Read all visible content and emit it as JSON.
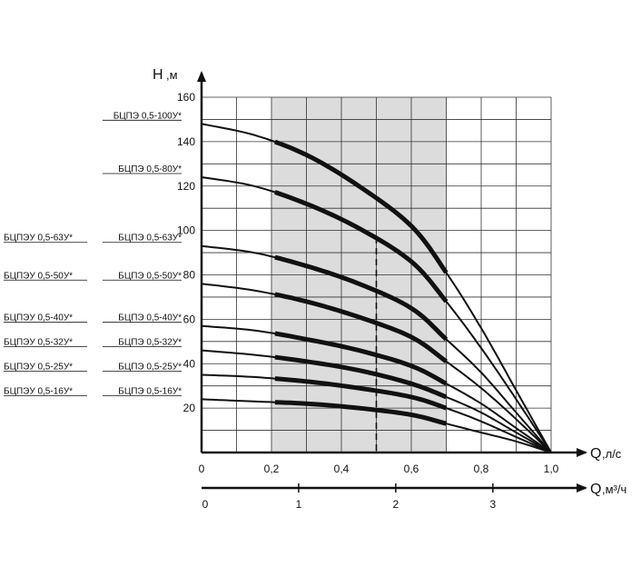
{
  "chart_data": {
    "type": "line",
    "y_axis": {
      "label": "Н",
      "unit": ",м",
      "range": [
        0,
        160
      ],
      "ticks": [
        "20",
        "40",
        "60",
        "80",
        "100",
        "120",
        "140",
        "160"
      ]
    },
    "x_axis": {
      "label": "Q",
      "unit": ",л/с",
      "range": [
        0,
        1.0
      ],
      "ticks": [
        "0",
        "0,2",
        "0,4",
        "0,6",
        "0,8",
        "1,0"
      ]
    },
    "x2_axis": {
      "label": "Q",
      "unit": ",м³/ч",
      "range": [
        0,
        3.6
      ],
      "ticks": [
        "0",
        "1",
        "2",
        "3"
      ]
    },
    "grid": true,
    "working_range": {
      "from": 0.2,
      "to": 0.7,
      "nominal": 0.5
    },
    "series": [
      {
        "name": "БЦПЭ 0,5-100У*",
        "left_name": "",
        "values": [
          148,
          143,
          134,
          120,
          102,
          81,
          56,
          28,
          0
        ]
      },
      {
        "name": "БЦПЭ 0,5-80У*",
        "left_name": "",
        "values": [
          124,
          120,
          112,
          101,
          86,
          68,
          47,
          24,
          0
        ]
      },
      {
        "name": "БЦПЭ 0,5-63У*",
        "left_name": "БЦПЭУ 0,5-63У*",
        "values": [
          93,
          90,
          84,
          76,
          65,
          51,
          36,
          18,
          0
        ]
      },
      {
        "name": "БЦПЭ 0,5-50У*",
        "left_name": "БЦПЭУ 0,5-50У*",
        "values": [
          76,
          73,
          68,
          61,
          52,
          41,
          29,
          15,
          0
        ]
      },
      {
        "name": "БЦПЭ 0,5-40У*",
        "left_name": "БЦПЭУ 0,5-40У*",
        "values": [
          57,
          55,
          51,
          46,
          39,
          31,
          22,
          11,
          0
        ]
      },
      {
        "name": "БЦПЭ 0,5-32У*",
        "left_name": "БЦПЭУ 0,5-32У*",
        "values": [
          46,
          44,
          41,
          37,
          31,
          25,
          18,
          9,
          0
        ]
      },
      {
        "name": "БЦПЭ 0,5-25У*",
        "left_name": "БЦПЭУ 0,5-25У*",
        "values": [
          35,
          34,
          32,
          29,
          25,
          20,
          14,
          7,
          0
        ]
      },
      {
        "name": "БЦПЭ 0,5-16У*",
        "left_name": "БЦПЭУ 0,5-16У*",
        "values": [
          24,
          23,
          22,
          20,
          17,
          13,
          9,
          5,
          0
        ]
      }
    ],
    "x": [
      0,
      0.15,
      0.3,
      0.45,
      0.6,
      0.7,
      0.8,
      0.9,
      1.0
    ]
  }
}
